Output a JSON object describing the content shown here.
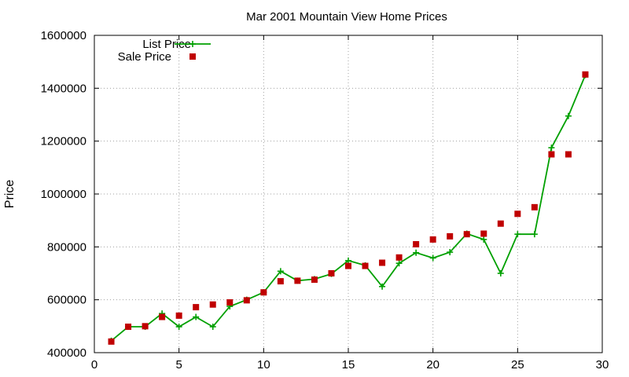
{
  "chart_data": {
    "type": "line",
    "title": "Mar 2001 Mountain View Home Prices",
    "xlabel": "",
    "ylabel": "Price",
    "xlim": [
      0,
      30
    ],
    "ylim": [
      400000,
      1600000
    ],
    "xticks": [
      0,
      5,
      10,
      15,
      20,
      25,
      30
    ],
    "yticks": [
      400000,
      600000,
      800000,
      1000000,
      1200000,
      1400000,
      1600000
    ],
    "grid": true,
    "legend_position": "top-left",
    "series": [
      {
        "name": "List Price",
        "style": "line-with-plus-markers",
        "color": "#00a000",
        "x": [
          1,
          2,
          3,
          4,
          5,
          6,
          7,
          8,
          9,
          10,
          11,
          12,
          13,
          14,
          15,
          16,
          17,
          18,
          19,
          20,
          21,
          22,
          23,
          24,
          25,
          26,
          27,
          28,
          29
        ],
        "y": [
          445000,
          498000,
          498000,
          548000,
          498000,
          535000,
          498000,
          575000,
          600000,
          628000,
          708000,
          672000,
          678000,
          698000,
          748000,
          730000,
          650000,
          738000,
          778000,
          758000,
          780000,
          850000,
          828000,
          700000,
          848000,
          848000,
          1175000,
          1295000,
          1450000
        ]
      },
      {
        "name": "Sale Price",
        "style": "square-markers",
        "color": "#c00000",
        "x": [
          1,
          2,
          3,
          4,
          5,
          6,
          7,
          8,
          9,
          10,
          11,
          12,
          13,
          14,
          15,
          16,
          17,
          18,
          19,
          20,
          21,
          22,
          23,
          24,
          25,
          26,
          27,
          28,
          29
        ],
        "y": [
          442000,
          498000,
          500000,
          535000,
          540000,
          572000,
          582000,
          590000,
          598000,
          628000,
          670000,
          672000,
          676000,
          700000,
          728000,
          728000,
          740000,
          760000,
          810000,
          828000,
          840000,
          848000,
          850000,
          888000,
          925000,
          950000,
          1150000,
          1150000,
          1452000
        ]
      }
    ]
  }
}
